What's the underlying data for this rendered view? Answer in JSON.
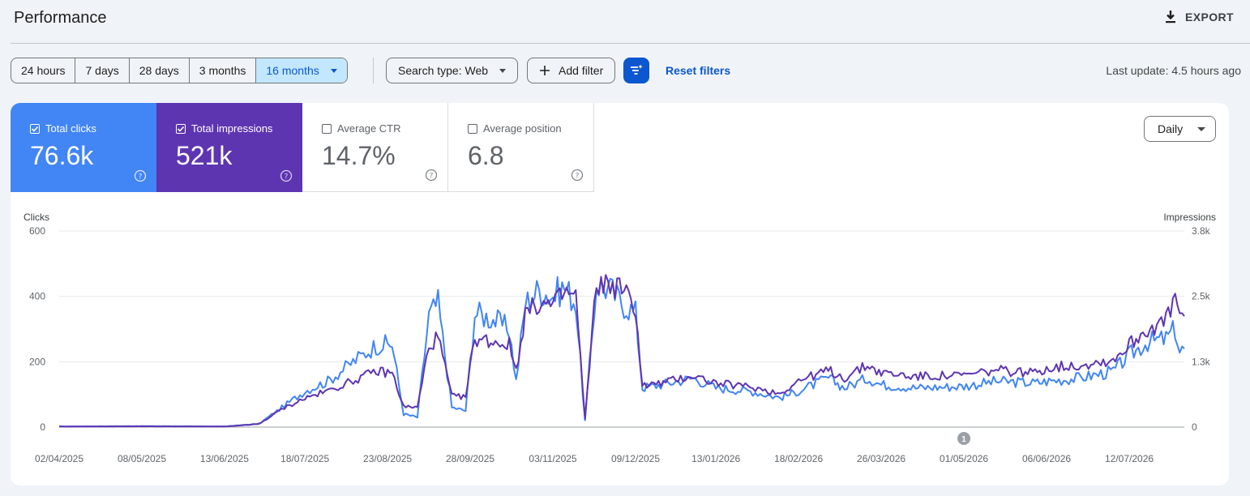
{
  "header": {
    "title": "Performance",
    "export_label": "EXPORT",
    "export_icon": "download-icon"
  },
  "toolbar": {
    "date_ranges": [
      {
        "label": "24 hours",
        "active": false
      },
      {
        "label": "7 days",
        "active": false
      },
      {
        "label": "28 days",
        "active": false
      },
      {
        "label": "3 months",
        "active": false
      },
      {
        "label": "16 months",
        "active": true
      }
    ],
    "search_type": "Search type: Web",
    "add_filter": "Add filter",
    "reset_filters": "Reset filters",
    "last_update": "Last update: 4.5 hours ago",
    "accent": "#0b57d0"
  },
  "metrics": {
    "clicks": {
      "label": "Total clicks",
      "value": "76.6k",
      "checked": true,
      "color": "#4285f4"
    },
    "impressions": {
      "label": "Total impressions",
      "value": "521k",
      "checked": true,
      "color": "#5e35b1"
    },
    "ctr": {
      "label": "Average CTR",
      "value": "14.7%",
      "checked": false
    },
    "position": {
      "label": "Average position",
      "value": "6.8",
      "checked": false
    }
  },
  "granularity": "Daily",
  "chart_data": {
    "type": "line",
    "title": "",
    "x_tick_labels": [
      "02/04/2025",
      "08/05/2025",
      "13/06/2025",
      "18/07/2025",
      "23/08/2025",
      "28/09/2025",
      "03/11/2025",
      "09/12/2025",
      "13/01/2026",
      "18/02/2026",
      "26/03/2026",
      "01/05/2026",
      "06/06/2026",
      "12/07/2026"
    ],
    "x_range": [
      "02/04/2025",
      "05/08/2026"
    ],
    "y_left": {
      "label": "Clicks",
      "ticks": [
        "0",
        "200",
        "400",
        "600"
      ],
      "range": [
        0,
        600
      ]
    },
    "y_right": {
      "label": "Impressions",
      "ticks": [
        "0",
        "1.3k",
        "2.5k",
        "3.8k"
      ],
      "range": [
        0,
        3800
      ]
    },
    "grid": true,
    "annotation": {
      "label": "1",
      "date": "01/05/2026"
    },
    "series": [
      {
        "name": "Total clicks",
        "axis": "left",
        "color": "#4285f4",
        "points": [
          [
            "02/04/2025",
            2
          ],
          [
            "08/05/2025",
            3
          ],
          [
            "13/06/2025",
            2
          ],
          [
            "28/06/2025",
            10
          ],
          [
            "08/07/2025",
            60
          ],
          [
            "18/07/2025",
            110
          ],
          [
            "28/07/2025",
            140
          ],
          [
            "08/08/2025",
            200
          ],
          [
            "18/08/2025",
            250
          ],
          [
            "25/08/2025",
            255
          ],
          [
            "30/08/2025",
            40
          ],
          [
            "05/09/2025",
            30
          ],
          [
            "10/09/2025",
            340
          ],
          [
            "14/09/2025",
            380
          ],
          [
            "20/09/2025",
            60
          ],
          [
            "26/09/2025",
            50
          ],
          [
            "30/09/2025",
            350
          ],
          [
            "08/10/2025",
            330
          ],
          [
            "15/10/2025",
            300
          ],
          [
            "18/10/2025",
            140
          ],
          [
            "22/10/2025",
            380
          ],
          [
            "28/10/2025",
            420
          ],
          [
            "03/11/2025",
            400
          ],
          [
            "08/11/2025",
            430
          ],
          [
            "13/11/2025",
            380
          ],
          [
            "17/11/2025",
            20
          ],
          [
            "22/11/2025",
            440
          ],
          [
            "28/11/2025",
            420
          ],
          [
            "03/12/2025",
            380
          ],
          [
            "09/12/2025",
            350
          ],
          [
            "12/12/2025",
            120
          ],
          [
            "20/12/2025",
            130
          ],
          [
            "03/01/2026",
            150
          ],
          [
            "13/01/2026",
            120
          ],
          [
            "28/01/2026",
            110
          ],
          [
            "10/02/2026",
            90
          ],
          [
            "18/02/2026",
            110
          ],
          [
            "03/03/2026",
            150
          ],
          [
            "10/03/2026",
            120
          ],
          [
            "20/03/2026",
            150
          ],
          [
            "26/03/2026",
            130
          ],
          [
            "10/04/2026",
            120
          ],
          [
            "01/05/2026",
            125
          ],
          [
            "15/05/2026",
            140
          ],
          [
            "01/06/2026",
            135
          ],
          [
            "06/06/2026",
            140
          ],
          [
            "20/06/2026",
            150
          ],
          [
            "05/07/2026",
            170
          ],
          [
            "12/07/2026",
            220
          ],
          [
            "20/07/2026",
            260
          ],
          [
            "28/07/2026",
            270
          ],
          [
            "01/08/2026",
            300
          ],
          [
            "03/08/2026",
            230
          ],
          [
            "05/08/2026",
            240
          ]
        ]
      },
      {
        "name": "Total impressions",
        "axis": "right",
        "color": "#5e35b1",
        "points": [
          [
            "02/04/2025",
            10
          ],
          [
            "08/05/2025",
            15
          ],
          [
            "13/06/2025",
            10
          ],
          [
            "28/06/2025",
            60
          ],
          [
            "08/07/2025",
            350
          ],
          [
            "18/07/2025",
            560
          ],
          [
            "28/07/2025",
            700
          ],
          [
            "08/08/2025",
            900
          ],
          [
            "18/08/2025",
            1080
          ],
          [
            "25/08/2025",
            1050
          ],
          [
            "30/08/2025",
            400
          ],
          [
            "05/09/2025",
            380
          ],
          [
            "10/09/2025",
            1560
          ],
          [
            "14/09/2025",
            1750
          ],
          [
            "20/09/2025",
            600
          ],
          [
            "26/09/2025",
            580
          ],
          [
            "30/09/2025",
            1720
          ],
          [
            "08/10/2025",
            1660
          ],
          [
            "15/10/2025",
            1600
          ],
          [
            "18/10/2025",
            1100
          ],
          [
            "22/10/2025",
            2200
          ],
          [
            "28/10/2025",
            2400
          ],
          [
            "03/11/2025",
            2350
          ],
          [
            "08/11/2025",
            2600
          ],
          [
            "13/11/2025",
            2550
          ],
          [
            "17/11/2025",
            150
          ],
          [
            "22/11/2025",
            2800
          ],
          [
            "28/11/2025",
            2750
          ],
          [
            "03/12/2025",
            2700
          ],
          [
            "09/12/2025",
            2300
          ],
          [
            "12/12/2025",
            800
          ],
          [
            "20/12/2025",
            850
          ],
          [
            "03/01/2026",
            1000
          ],
          [
            "13/01/2026",
            850
          ],
          [
            "28/01/2026",
            780
          ],
          [
            "10/02/2026",
            650
          ],
          [
            "18/02/2026",
            900
          ],
          [
            "03/03/2026",
            1100
          ],
          [
            "10/03/2026",
            950
          ],
          [
            "20/03/2026",
            1200
          ],
          [
            "26/03/2026",
            1050
          ],
          [
            "10/04/2026",
            980
          ],
          [
            "01/05/2026",
            1000
          ],
          [
            "15/05/2026",
            1100
          ],
          [
            "01/06/2026",
            1050
          ],
          [
            "06/06/2026",
            1150
          ],
          [
            "20/06/2026",
            1200
          ],
          [
            "05/07/2026",
            1300
          ],
          [
            "12/07/2026",
            1600
          ],
          [
            "20/07/2026",
            1900
          ],
          [
            "28/07/2026",
            2050
          ],
          [
            "01/08/2026",
            2500
          ],
          [
            "03/08/2026",
            2200
          ],
          [
            "05/08/2026",
            2150
          ]
        ]
      }
    ]
  }
}
